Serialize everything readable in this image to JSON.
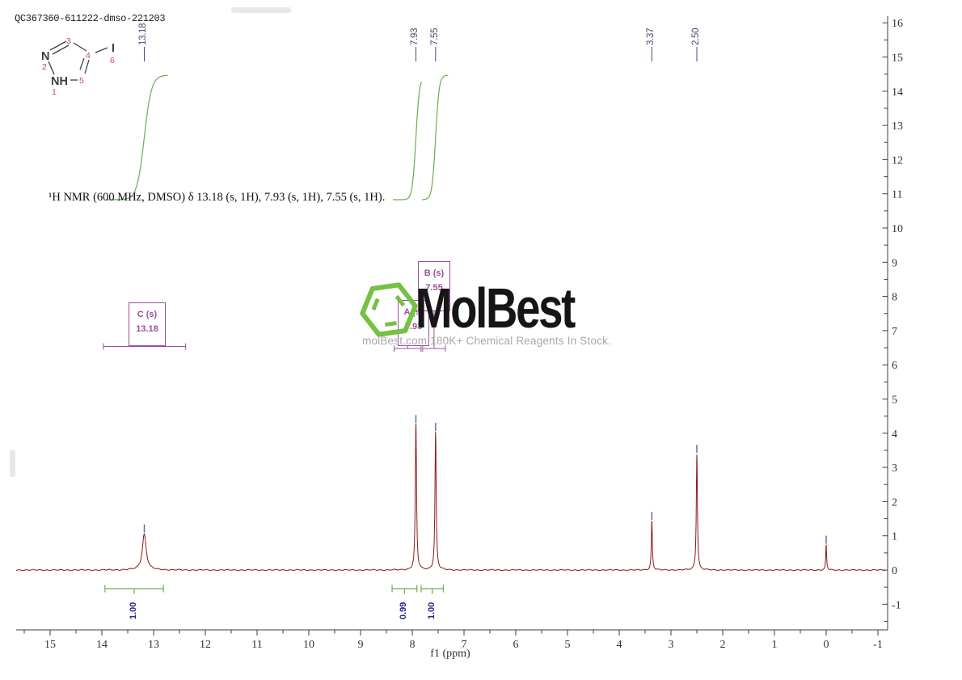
{
  "header": {
    "title": "QC367360-611222-dmso-221203"
  },
  "caption": {
    "text": "¹H NMR (600 MHz, DMSO) δ 13.18 (s, 1H), 7.93 (s, 1H), 7.55 (s, 1H)."
  },
  "logo": {
    "name": "MolBest",
    "tagline": "molBest.com 180K+ Chemical Reagents In Stock."
  },
  "molecule": {
    "atom_labels": [
      "N",
      "NH",
      "I"
    ],
    "position_numbers": [
      "1",
      "2",
      "3",
      "4",
      "5",
      "6"
    ]
  },
  "colors": {
    "spectrum": "#8a1a1a",
    "integral_curve": "#6aad52",
    "annotation_purple": "#9c4f9c",
    "peak_label_blue": "#474b78",
    "integral_value_navy": "#23238f",
    "axis_gray": "#3c3c3c",
    "logo_green": "#76c043",
    "logo_text": "#161616",
    "tagline_gray": "#a8a8a8",
    "structure_bond": "#3f3f3f",
    "structure_number": "#c94b4b",
    "peak_marker_blue": "#5166a8"
  },
  "chart_data": {
    "type": "line",
    "subtype": "1H-NMR-spectrum",
    "title": "¹H NMR (600 MHz, DMSO)",
    "xlabel": "f1 (ppm)",
    "ylabel": "",
    "grid": false,
    "axis_reversed_x": true,
    "x_ticks": [
      15,
      14,
      13,
      12,
      11,
      10,
      9,
      8,
      7,
      6,
      5,
      4,
      3,
      2,
      1,
      0,
      -1
    ],
    "x_range_ppm": [
      15.66,
      -1.19
    ],
    "y_ticks": [
      16,
      15,
      14,
      13,
      12,
      11,
      10,
      9,
      8,
      7,
      6,
      5,
      4,
      3,
      2,
      1,
      0,
      -1
    ],
    "y_range": [
      -1.75,
      16.2
    ],
    "peaks": [
      {
        "ppm": 13.18,
        "height": 1.05,
        "label": "13.18",
        "width_ppm": 0.045
      },
      {
        "ppm": 7.93,
        "height": 4.25,
        "label": "7.93",
        "width_ppm": 0.014
      },
      {
        "ppm": 7.55,
        "height": 4.02,
        "label": "7.55",
        "width_ppm": 0.014
      },
      {
        "ppm": 3.37,
        "height": 1.42,
        "label": "3.37",
        "width_ppm": 0.012
      },
      {
        "ppm": 2.5,
        "height": 3.38,
        "label": "2.50",
        "width_ppm": 0.013
      },
      {
        "ppm": 0.0,
        "height": 0.72,
        "label": "",
        "width_ppm": 0.01
      }
    ],
    "integrals": [
      {
        "from_ppm": 13.94,
        "to_ppm": 12.81,
        "value": "1.00",
        "peak_ppm": 13.18
      },
      {
        "from_ppm": 8.39,
        "to_ppm": 7.91,
        "value": "0.99",
        "peak_ppm": 7.93
      },
      {
        "from_ppm": 7.83,
        "to_ppm": 7.4,
        "value": "1.00",
        "peak_ppm": 7.55
      }
    ],
    "multiplet_boxes": [
      {
        "id": "A",
        "line1": "A (s)",
        "line2": "7.93",
        "region_from_ppm": 8.35,
        "region_to_ppm": 7.83
      },
      {
        "id": "B",
        "line1": "B (s)",
        "line2": "7.55",
        "region_from_ppm": 7.8,
        "region_to_ppm": 7.36
      },
      {
        "id": "C",
        "line1": "C (s)",
        "line2": "13.18",
        "region_from_ppm": 13.97,
        "region_to_ppm": 12.38
      }
    ]
  }
}
